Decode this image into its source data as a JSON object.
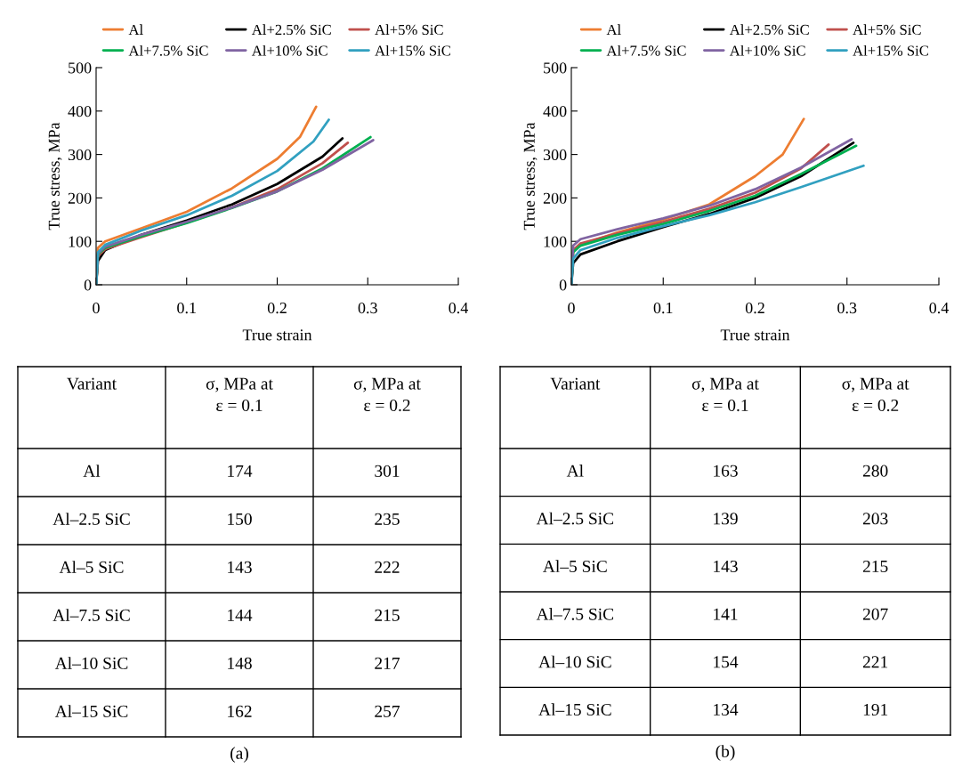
{
  "chart_data": [
    {
      "type": "line",
      "xlabel": "True strain",
      "ylabel": "True stress, MPa",
      "xlim": [
        0,
        0.4
      ],
      "ylim": [
        0,
        500
      ],
      "xticks": [
        0,
        0.1,
        0.2,
        0.3,
        0.4
      ],
      "yticks": [
        0,
        100,
        200,
        300,
        400,
        500
      ],
      "grid": false,
      "legend": "top",
      "marker": "none",
      "line_style": "solid",
      "series": [
        {
          "name": "Al",
          "color": "#ed7d31",
          "x": [
            0,
            0.002,
            0.01,
            0.05,
            0.1,
            0.15,
            0.2,
            0.225,
            0.243
          ],
          "values": [
            0,
            85,
            100,
            130,
            168,
            222,
            290,
            340,
            410
          ]
        },
        {
          "name": "Al+2.5% SiC",
          "color": "#000000",
          "x": [
            0,
            0.002,
            0.01,
            0.05,
            0.1,
            0.15,
            0.2,
            0.25,
            0.272
          ],
          "values": [
            0,
            55,
            80,
            115,
            148,
            185,
            232,
            295,
            337
          ]
        },
        {
          "name": "Al+5% SiC",
          "color": "#c0504d",
          "x": [
            0,
            0.002,
            0.01,
            0.05,
            0.1,
            0.15,
            0.2,
            0.25,
            0.278
          ],
          "values": [
            0,
            66,
            82,
            110,
            143,
            178,
            220,
            280,
            327
          ]
        },
        {
          "name": "Al+7.5% SiC",
          "color": "#00b050",
          "x": [
            0,
            0.002,
            0.01,
            0.05,
            0.1,
            0.15,
            0.2,
            0.25,
            0.303
          ],
          "values": [
            0,
            70,
            85,
            112,
            142,
            177,
            215,
            268,
            340
          ]
        },
        {
          "name": "Al+10% SiC",
          "color": "#8064a2",
          "x": [
            0,
            0.002,
            0.01,
            0.05,
            0.1,
            0.15,
            0.2,
            0.25,
            0.306
          ],
          "values": [
            0,
            72,
            88,
            115,
            145,
            178,
            215,
            265,
            333
          ]
        },
        {
          "name": "Al+15% SiC",
          "color": "#31a0c0",
          "x": [
            0,
            0.002,
            0.01,
            0.05,
            0.1,
            0.15,
            0.2,
            0.24,
            0.257
          ],
          "values": [
            0,
            75,
            92,
            125,
            160,
            205,
            262,
            330,
            380
          ]
        }
      ],
      "annotations": [
        "Variant",
        "σ, MPa at\nε = 0.1",
        "σ, MPa at\nε = 0.2",
        "Al",
        "174",
        "301",
        "Al–2.5 SiC",
        "150",
        "235",
        "Al–5 SiC",
        "143",
        "222",
        "Al–7.5 SiC",
        "144",
        "215",
        "Al–10 SiC",
        "148",
        "217",
        "Al–15 SiC",
        "162",
        "257",
        "(a)"
      ]
    },
    {
      "type": "line",
      "xlabel": "True strain",
      "ylabel": "True stress, MPa",
      "xlim": [
        0,
        0.4
      ],
      "ylim": [
        0,
        500
      ],
      "xticks": [
        0,
        0.1,
        0.2,
        0.3,
        0.4
      ],
      "yticks": [
        0,
        100,
        200,
        300,
        400,
        500
      ],
      "grid": false,
      "legend": "top",
      "marker": "none",
      "line_style": "solid",
      "series": [
        {
          "name": "Al",
          "color": "#ed7d31",
          "x": [
            0,
            0.002,
            0.01,
            0.05,
            0.1,
            0.15,
            0.2,
            0.23,
            0.253
          ],
          "values": [
            0,
            80,
            92,
            120,
            150,
            185,
            250,
            300,
            382
          ]
        },
        {
          "name": "Al+2.5% SiC",
          "color": "#000000",
          "x": [
            0,
            0.002,
            0.01,
            0.05,
            0.1,
            0.15,
            0.2,
            0.25,
            0.307
          ],
          "values": [
            0,
            50,
            70,
            100,
            133,
            163,
            200,
            250,
            327
          ]
        },
        {
          "name": "Al+5% SiC",
          "color": "#c0504d",
          "x": [
            0,
            0.002,
            0.01,
            0.05,
            0.1,
            0.15,
            0.2,
            0.25,
            0.28
          ],
          "values": [
            0,
            80,
            95,
            118,
            145,
            175,
            212,
            268,
            323
          ]
        },
        {
          "name": "Al+7.5% SiC",
          "color": "#00b050",
          "x": [
            0,
            0.002,
            0.01,
            0.05,
            0.1,
            0.15,
            0.2,
            0.25,
            0.31
          ],
          "values": [
            0,
            75,
            90,
            115,
            140,
            170,
            205,
            255,
            320
          ]
        },
        {
          "name": "Al+10% SiC",
          "color": "#8064a2",
          "x": [
            0,
            0.002,
            0.01,
            0.05,
            0.1,
            0.15,
            0.2,
            0.25,
            0.305
          ],
          "values": [
            0,
            90,
            105,
            128,
            153,
            182,
            220,
            270,
            335
          ]
        },
        {
          "name": "Al+15% SiC",
          "color": "#31a0c0",
          "x": [
            0,
            0.002,
            0.01,
            0.05,
            0.1,
            0.15,
            0.2,
            0.25,
            0.318
          ],
          "values": [
            0,
            60,
            80,
            108,
            135,
            160,
            190,
            225,
            274
          ]
        }
      ],
      "annotations": [
        "Variant",
        "σ, MPa at\nε = 0.1",
        "σ, MPa at\nε = 0.2",
        "Al",
        "163",
        "280",
        "Al–2.5 SiC",
        "139",
        "203",
        "Al–5 SiC",
        "143",
        "215",
        "Al–7.5 SiC",
        "141",
        "207",
        "Al–10 SiC",
        "154",
        "221",
        "Al–15 SiC",
        "134",
        "191",
        "(b)"
      ]
    }
  ]
}
